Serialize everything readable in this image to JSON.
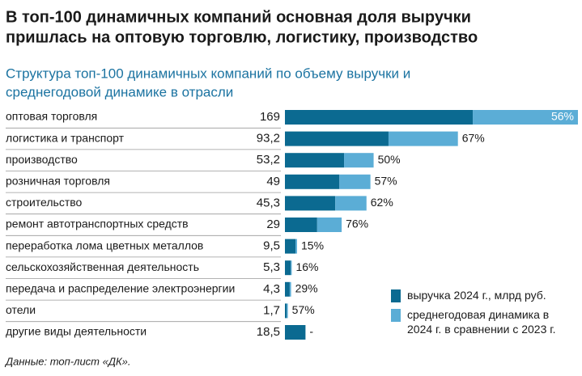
{
  "chart_data": {
    "type": "stacked-growth-bar",
    "title": [
      "В топ-100 динамичных компаний основная доля выручки",
      "пришлась на оптовую торговлю, логистику, производство"
    ],
    "subtitle": [
      "Структура топ-100 динамичных компаний по объему выручки и",
      "среднегодовой динамике в отрасли"
    ],
    "categories": [
      "оптовая торговля",
      "логистика и транспорт",
      "производство",
      "розничная торговля",
      "строительство",
      "ремонт автотранспортных средств",
      "переработка лома цветных металлов",
      "сельскохозяйственная деятельность",
      "передача и распределение электроэнергии",
      "отели",
      "другие виды деятельности"
    ],
    "series": [
      {
        "name": "выручка 2024 г., млрд руб.",
        "color": "#0b6a91",
        "values": [
          169,
          93.2,
          53.2,
          49,
          45.3,
          29,
          9.5,
          5.3,
          4.3,
          1.7,
          18.5
        ],
        "value_labels": [
          "169",
          "93,2",
          "53,2",
          "49",
          "45,3",
          "29",
          "9,5",
          "5,3",
          "4,3",
          "1,7",
          "18,5"
        ]
      },
      {
        "name": "среднегодовая динамика в 2024 г. в сравнении с 2023 г.",
        "color": "#5badd6",
        "values": [
          56,
          67,
          50,
          57,
          62,
          76,
          15,
          16,
          29,
          57,
          null
        ],
        "value_labels": [
          "56%",
          "67%",
          "50%",
          "57%",
          "62%",
          "76%",
          "15%",
          "16%",
          "29%",
          "57%",
          "-"
        ]
      }
    ],
    "source": "Данные: топ-лист «ДК»."
  }
}
